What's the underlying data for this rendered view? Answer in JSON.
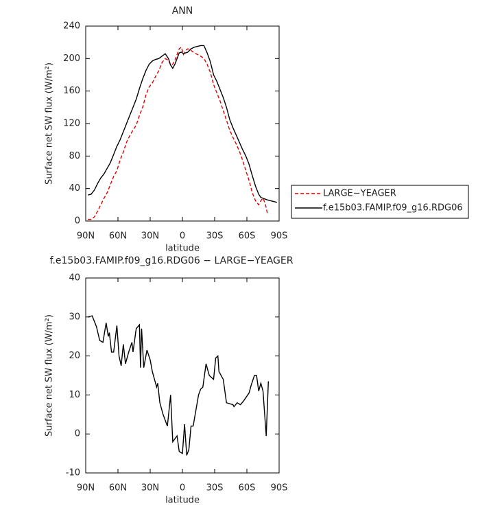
{
  "chart_data": [
    {
      "type": "line",
      "title": "ANN",
      "xlabel": "latitude",
      "ylabel": "Surface net SW flux (W/m²)",
      "xlim": [
        90,
        -90
      ],
      "xticks": [
        {
          "value": 90,
          "label": "90N"
        },
        {
          "value": 60,
          "label": "60N"
        },
        {
          "value": 30,
          "label": "30N"
        },
        0,
        {
          "value": -30,
          "label": "30S"
        },
        {
          "value": -60,
          "label": "60S"
        },
        {
          "value": -90,
          "label": "90S"
        }
      ],
      "ylim": [
        0,
        240
      ],
      "yticks": [
        0,
        40,
        80,
        120,
        160,
        200,
        240
      ],
      "legend": "right",
      "x": [
        88,
        85,
        82,
        79,
        76,
        73,
        70,
        67,
        64,
        61,
        58,
        55,
        52,
        49,
        46,
        43,
        40,
        37,
        34,
        31,
        28,
        25,
        22,
        19,
        16,
        13,
        11,
        9,
        7,
        5,
        3,
        1,
        -1,
        -3,
        -5,
        -8,
        -11,
        -14,
        -17,
        -20,
        -23,
        -26,
        -29,
        -32,
        -35,
        -38,
        -41,
        -44,
        -47,
        -50,
        -53,
        -56,
        -59,
        -62,
        -65,
        -68,
        -71,
        -73,
        -75,
        -77,
        -79,
        -82,
        -85,
        -88
      ],
      "series": [
        {
          "name": "LARGE−YEAGER",
          "color": "#e00000",
          "linestyle": "dashed",
          "values": [
            2,
            2,
            5,
            12,
            20,
            28,
            35,
            45,
            55,
            62,
            75,
            85,
            97,
            105,
            112,
            118,
            130,
            140,
            155,
            165,
            170,
            178,
            185,
            195,
            200,
            198,
            192,
            193,
            198,
            205,
            212,
            214,
            205,
            210,
            212,
            210,
            207,
            205,
            203,
            200,
            193,
            183,
            168,
            158,
            148,
            136,
            124,
            112,
            103,
            95,
            86,
            75,
            62,
            50,
            35,
            25,
            20,
            25,
            28,
            22,
            10,
            null,
            null,
            null
          ]
        },
        {
          "name": "f.e15b03.FAMIP.f09_g16.RDG06",
          "color": "#000000",
          "linestyle": "solid",
          "values": [
            32,
            33,
            38,
            46,
            53,
            58,
            65,
            72,
            82,
            92,
            100,
            110,
            120,
            130,
            140,
            150,
            163,
            175,
            185,
            193,
            197,
            199,
            200,
            203,
            206,
            200,
            192,
            188,
            193,
            200,
            207,
            208,
            206,
            207,
            208,
            212,
            214,
            215,
            216,
            216,
            207,
            196,
            180,
            172,
            162,
            152,
            140,
            125,
            115,
            106,
            97,
            88,
            80,
            70,
            56,
            43,
            33,
            29,
            28,
            27,
            26,
            25,
            24,
            23
          ]
        }
      ]
    },
    {
      "type": "line",
      "title": "f.e15b03.FAMIP.f09_g16.RDG06 − LARGE−YEAGER",
      "xlabel": "latitude",
      "ylabel": "Surface net SW flux (W/m²)",
      "xlim": [
        90,
        -90
      ],
      "xticks": [
        {
          "value": 90,
          "label": "90N"
        },
        {
          "value": 60,
          "label": "60N"
        },
        {
          "value": 30,
          "label": "30N"
        },
        0,
        {
          "value": -30,
          "label": "30S"
        },
        {
          "value": -60,
          "label": "60S"
        },
        {
          "value": -90,
          "label": "90S"
        }
      ],
      "ylim": [
        -10,
        40
      ],
      "yticks": [
        -10,
        0,
        10,
        20,
        30,
        40
      ],
      "color": "#000000",
      "x": [
        88,
        84,
        80,
        77,
        74,
        71,
        69,
        68,
        66,
        64,
        61,
        59,
        57,
        55,
        53,
        50,
        47,
        46,
        43,
        40,
        39,
        38,
        36,
        33,
        30,
        28,
        24,
        23,
        21,
        18,
        14,
        11,
        9,
        5,
        3,
        0,
        -2,
        -4,
        -6,
        -8,
        -10,
        -15,
        -17,
        -19,
        -22,
        -25,
        -29,
        -31,
        -33,
        -34,
        -38,
        -41,
        -47,
        -48,
        -51,
        -54,
        -57,
        -62,
        -64,
        -67,
        -69,
        -71,
        -73,
        -75,
        -78,
        -80
      ],
      "values": [
        30,
        30.3,
        27.5,
        24,
        23.5,
        28.5,
        25,
        26,
        21,
        21,
        27.8,
        20,
        17.5,
        23,
        18,
        21,
        23.5,
        21,
        27,
        28,
        17,
        27,
        17,
        21.5,
        19,
        16,
        12,
        13,
        8,
        5,
        2,
        10,
        -2,
        -0.5,
        -4.5,
        -5,
        2.5,
        -5.5,
        -4,
        2,
        2,
        10,
        11.5,
        12,
        18,
        15,
        14,
        19.5,
        20,
        16,
        14,
        8,
        7.5,
        7,
        8,
        7.5,
        8.5,
        10.5,
        12.5,
        15,
        15,
        11,
        13,
        11,
        -0.5,
        13.5
      ]
    }
  ]
}
